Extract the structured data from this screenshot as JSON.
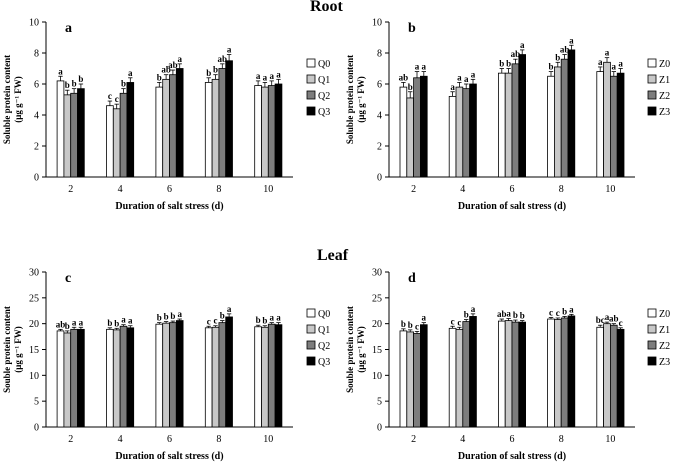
{
  "section_titles": {
    "top": "Root",
    "bottom": "Leaf"
  },
  "colors": {
    "Q0": "#ffffff",
    "Q1": "#c8c8c8",
    "Q2": "#7d7d7d",
    "Q3": "#000000"
  },
  "chart_data": [
    {
      "type": "bar",
      "panel": "a",
      "organ": "Root",
      "xlabel": "Duration of salt stress (d)",
      "ylabel_line1": "Soluble protein content",
      "ylabel_line2": "(μg g⁻¹ FW)",
      "ylim": [
        0,
        10
      ],
      "yticks": [
        "0",
        "2",
        "4",
        "6",
        "8",
        "10"
      ],
      "categories": [
        "2",
        "4",
        "6",
        "8",
        "10"
      ],
      "series": [
        {
          "name": "Q0",
          "values": [
            6.2,
            4.6,
            5.8,
            6.1,
            5.9
          ],
          "errors": [
            0.3,
            0.3,
            0.3,
            0.3,
            0.3
          ],
          "letters": [
            "a",
            "c",
            "b",
            "b",
            "a"
          ]
        },
        {
          "name": "Q1",
          "values": [
            5.3,
            4.4,
            6.3,
            6.3,
            5.8
          ],
          "errors": [
            0.3,
            0.3,
            0.3,
            0.3,
            0.3
          ],
          "letters": [
            "b",
            "c",
            "ab",
            "b",
            "a"
          ]
        },
        {
          "name": "Q2",
          "values": [
            5.4,
            5.4,
            6.6,
            7.0,
            5.9
          ],
          "errors": [
            0.3,
            0.3,
            0.3,
            0.3,
            0.3
          ],
          "letters": [
            "b",
            "b",
            "ab",
            "ab",
            "a"
          ]
        },
        {
          "name": "Q3",
          "values": [
            5.7,
            6.1,
            7.0,
            7.5,
            6.0
          ],
          "errors": [
            0.3,
            0.3,
            0.3,
            0.4,
            0.3
          ],
          "letters": [
            "b",
            "a",
            "a",
            "a",
            "a"
          ]
        }
      ]
    },
    {
      "type": "bar",
      "panel": "b",
      "organ": "Root",
      "xlabel": "Duration of salt stress (d)",
      "ylabel_line1": "Soluble protein content",
      "ylabel_line2": "(μg g⁻¹ FW)",
      "ylim": [
        0,
        10
      ],
      "yticks": [
        "0",
        "2",
        "4",
        "6",
        "8",
        "10"
      ],
      "categories": [
        "2",
        "4",
        "6",
        "8",
        "10"
      ],
      "series": [
        {
          "name": "Z0",
          "values": [
            5.8,
            5.2,
            6.7,
            6.5,
            6.8
          ],
          "errors": [
            0.3,
            0.3,
            0.3,
            0.3,
            0.3
          ],
          "letters": [
            "ab",
            "a",
            "b",
            "b",
            "a"
          ]
        },
        {
          "name": "Z1",
          "values": [
            5.1,
            5.8,
            6.7,
            7.1,
            7.4
          ],
          "errors": [
            0.4,
            0.3,
            0.3,
            0.3,
            0.3
          ],
          "letters": [
            "b",
            "a",
            "b",
            "b",
            "a"
          ]
        },
        {
          "name": "Z2",
          "values": [
            6.4,
            5.7,
            7.3,
            7.6,
            6.5
          ],
          "errors": [
            0.4,
            0.3,
            0.3,
            0.3,
            0.3
          ],
          "letters": [
            "a",
            "a",
            "ab",
            "ab",
            "a"
          ]
        },
        {
          "name": "Z3",
          "values": [
            6.5,
            6.0,
            7.9,
            8.2,
            6.7
          ],
          "errors": [
            0.3,
            0.3,
            0.3,
            0.3,
            0.3
          ],
          "letters": [
            "a",
            "a",
            "a",
            "a",
            "a"
          ]
        }
      ]
    },
    {
      "type": "bar",
      "panel": "c",
      "organ": "Leaf",
      "xlabel": "Duration of salt stress (d)",
      "ylabel_line1": "Souble protein content",
      "ylabel_line2": "(μg g⁻¹ FW)",
      "ylim": [
        0,
        30
      ],
      "yticks": [
        "0",
        "5",
        "10",
        "15",
        "20",
        "25",
        "30"
      ],
      "categories": [
        "2",
        "4",
        "6",
        "8",
        "10"
      ],
      "series": [
        {
          "name": "Q0",
          "values": [
            18.6,
            18.9,
            19.9,
            19.2,
            19.4
          ],
          "errors": [
            0.3,
            0.3,
            0.3,
            0.3,
            0.3
          ],
          "letters": [
            "ab",
            "b",
            "b",
            "c",
            "b"
          ]
        },
        {
          "name": "Q1",
          "values": [
            18.2,
            18.8,
            20.1,
            19.3,
            19.3
          ],
          "errors": [
            0.4,
            0.3,
            0.3,
            0.3,
            0.3
          ],
          "letters": [
            "b",
            "b",
            "b",
            "c",
            "b"
          ]
        },
        {
          "name": "Q2",
          "values": [
            18.9,
            19.5,
            20.2,
            20.2,
            19.9
          ],
          "errors": [
            0.4,
            0.3,
            0.3,
            0.4,
            0.3
          ],
          "letters": [
            "a",
            "a",
            "b",
            "b",
            "a"
          ]
        },
        {
          "name": "Q3",
          "values": [
            18.9,
            19.2,
            20.6,
            21.3,
            19.8
          ],
          "errors": [
            0.4,
            0.4,
            0.3,
            0.6,
            0.4
          ],
          "letters": [
            "a",
            "a",
            "a",
            "a",
            "a"
          ]
        }
      ]
    },
    {
      "type": "bar",
      "panel": "d",
      "organ": "Leaf",
      "xlabel": "Duration of salt stress (d)",
      "ylabel_line1": "Souble protein content",
      "ylabel_line2": "(μg g⁻¹ FW)",
      "ylim": [
        0,
        30
      ],
      "yticks": [
        "0",
        "5",
        "10",
        "15",
        "20",
        "25",
        "30"
      ],
      "categories": [
        "2",
        "4",
        "6",
        "8",
        "10"
      ],
      "series": [
        {
          "name": "Z0",
          "values": [
            18.6,
            19.1,
            20.5,
            20.9,
            19.3
          ],
          "errors": [
            0.4,
            0.4,
            0.4,
            0.3,
            0.4
          ],
          "letters": [
            "b",
            "c",
            "ab",
            "c",
            "bc"
          ]
        },
        {
          "name": "Z1",
          "values": [
            18.4,
            18.9,
            20.6,
            20.8,
            20.0
          ],
          "errors": [
            0.4,
            0.4,
            0.4,
            0.3,
            0.3
          ],
          "letters": [
            "b",
            "c",
            "a",
            "c",
            "a"
          ]
        },
        {
          "name": "Z2",
          "values": [
            18.1,
            20.4,
            20.3,
            21.1,
            19.7
          ],
          "errors": [
            0.4,
            0.4,
            0.4,
            0.3,
            0.3
          ],
          "letters": [
            "c",
            "b",
            "b",
            "b",
            "ab"
          ]
        },
        {
          "name": "Z3",
          "values": [
            19.8,
            21.4,
            20.3,
            21.5,
            18.9
          ],
          "errors": [
            0.4,
            0.5,
            0.3,
            0.3,
            0.3
          ],
          "letters": [
            "a",
            "a",
            "b",
            "a",
            "c"
          ]
        }
      ]
    }
  ]
}
